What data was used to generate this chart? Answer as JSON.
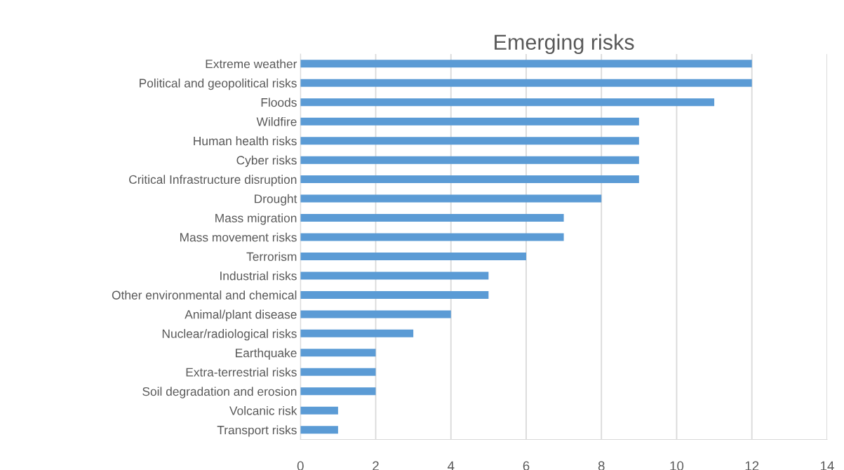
{
  "chart_data": {
    "type": "bar",
    "orientation": "horizontal",
    "title": "Emerging risks",
    "categories": [
      "Extreme weather",
      "Political and geopolitical risks",
      "Floods",
      "Wildfire",
      "Human health risks",
      "Cyber risks",
      "Critical Infrastructure disruption",
      "Drought",
      "Mass migration",
      "Mass movement risks",
      "Terrorism",
      "Industrial risks",
      "Other environmental and chemical",
      "Animal/plant disease",
      "Nuclear/radiological risks",
      "Earthquake",
      "Extra-terrestrial risks",
      "Soil degradation and erosion",
      "Volcanic risk",
      "Transport risks"
    ],
    "values": [
      12,
      12,
      11,
      9,
      9,
      9,
      9,
      8,
      7,
      7,
      6,
      5,
      5,
      4,
      3,
      2,
      2,
      2,
      1,
      1
    ],
    "color": "#5b9bd5",
    "xlim": [
      0,
      14
    ],
    "xticks": [
      0,
      2,
      4,
      6,
      8,
      10,
      12,
      14
    ],
    "grid": "x",
    "legend": false
  }
}
